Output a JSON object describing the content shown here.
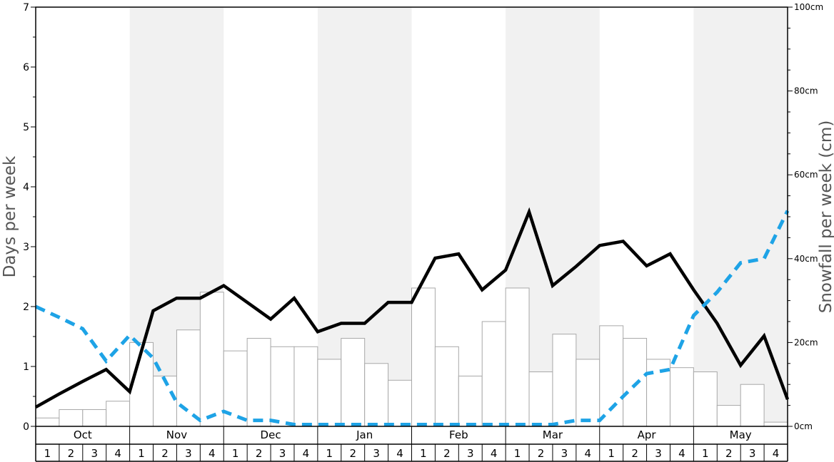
{
  "chart_data": {
    "type": "bar",
    "left_axis": {
      "label": "Days per week",
      "range": [
        0,
        7
      ],
      "ticks": [
        "0",
        "1",
        "2",
        "3",
        "4",
        "5",
        "6",
        "7"
      ]
    },
    "right_axis": {
      "label": "Snowfall per week (cm)",
      "range": [
        0,
        100
      ],
      "ticks": [
        "0cm",
        "20cm",
        "40cm",
        "60cm",
        "80cm",
        "100cm"
      ]
    },
    "months": [
      "Oct",
      "Nov",
      "Dec",
      "Jan",
      "Feb",
      "Mar",
      "Apr",
      "May"
    ],
    "weeks": [
      "1",
      "2",
      "3",
      "4"
    ],
    "series": [
      {
        "type": "bar",
        "axis": "right",
        "values": [
          2,
          4,
          4,
          6,
          20,
          12,
          23,
          32,
          18,
          21,
          19,
          19,
          16,
          21,
          15,
          11,
          33,
          19,
          12,
          25,
          33,
          13,
          22,
          16,
          24,
          21,
          16,
          14,
          13,
          5,
          10,
          1
        ]
      },
      {
        "type": "line",
        "axis": "left",
        "color": "#000000",
        "values": [
          0.32,
          0.54,
          0.75,
          0.95,
          0.58,
          1.93,
          2.14,
          2.14,
          2.35,
          2.07,
          1.79,
          2.14,
          1.58,
          1.72,
          1.72,
          2.07,
          2.07,
          2.81,
          2.88,
          2.28,
          2.61,
          3.58,
          2.35,
          2.67,
          3.02,
          3.09,
          2.68,
          2.88,
          2.28,
          1.72,
          1.02,
          1.51,
          0.45
        ]
      },
      {
        "type": "line",
        "axis": "left",
        "color": "#1ea3e6",
        "dashed": true,
        "values": [
          2.0,
          1.82,
          1.63,
          1.09,
          1.52,
          1.14,
          0.4,
          0.1,
          0.25,
          0.1,
          0.1,
          0.03,
          0.03,
          0.03,
          0.03,
          0.03,
          0.03,
          0.03,
          0.03,
          0.03,
          0.03,
          0.03,
          0.03,
          0.1,
          0.1,
          0.5,
          0.88,
          0.95,
          1.85,
          2.24,
          2.73,
          2.8,
          3.6
        ]
      }
    ],
    "grid": false,
    "legend": "none"
  }
}
